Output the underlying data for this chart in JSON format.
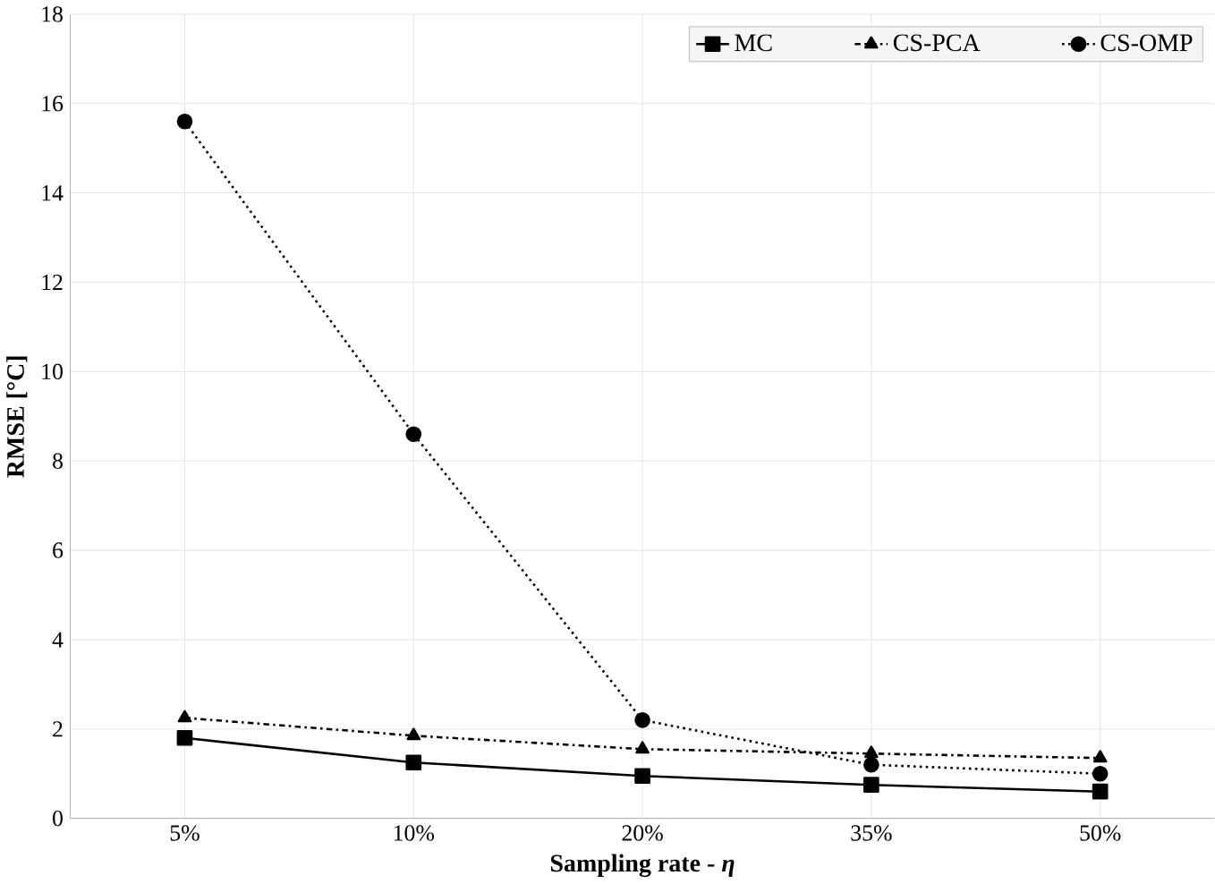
{
  "chart_data": {
    "type": "line",
    "xlabel": "Sampling rate - *η*",
    "ylabel": "RMSE [°C]",
    "categories": [
      "5%",
      "10%",
      "20%",
      "35%",
      "50%"
    ],
    "series": [
      {
        "name": "MC",
        "color": "#000000",
        "marker": "square",
        "line_style": "solid",
        "values": [
          1.8,
          1.25,
          0.95,
          0.75,
          0.6
        ]
      },
      {
        "name": "CS-PCA",
        "color": "#000000",
        "marker": "triangle",
        "line_style": "dashdot",
        "values": [
          2.25,
          1.85,
          1.55,
          1.45,
          1.35
        ]
      },
      {
        "name": "CS-OMP",
        "color": "#000000",
        "marker": "circle",
        "line_style": "dotted",
        "values": [
          15.6,
          8.6,
          2.2,
          1.2,
          1.0
        ]
      }
    ],
    "ylim": [
      0,
      18
    ],
    "yticks": [
      0,
      2,
      4,
      6,
      8,
      10,
      12,
      14,
      16,
      18
    ],
    "grid": true,
    "legend": "top right"
  }
}
